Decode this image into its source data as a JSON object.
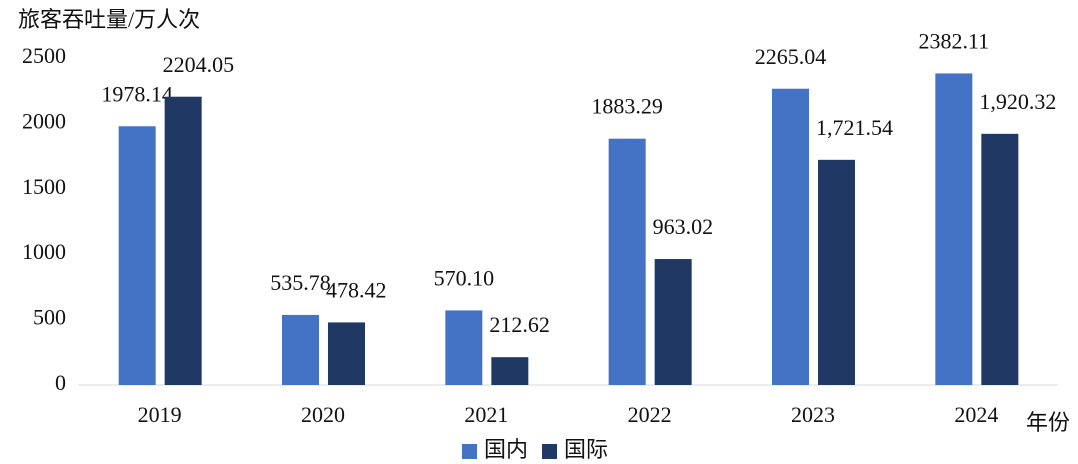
{
  "chart_data": {
    "type": "bar",
    "y_label": "旅客吞吐量/万人次",
    "x_label": "年份",
    "categories": [
      "2019",
      "2020",
      "2021",
      "2022",
      "2023",
      "2024"
    ],
    "series": [
      {
        "name": "国内",
        "color": "#4472c4",
        "values": [
          1978.14,
          535.78,
          570.1,
          1883.29,
          2265.04,
          2382.11
        ],
        "value_labels": [
          "1978.14",
          "535.78",
          "570.10",
          "1883.29",
          "2265.04",
          "2382.11"
        ]
      },
      {
        "name": "国际",
        "color": "#203864",
        "values": [
          2204.05,
          478.42,
          212.62,
          963.02,
          1721.54,
          1920.32
        ],
        "value_labels": [
          "2204.05",
          "478.42",
          "212.62",
          "963.02",
          "1,721.54",
          "1,920.32"
        ]
      }
    ],
    "ylim": [
      0,
      2500
    ],
    "yticks": [
      0,
      500,
      1000,
      1500,
      2000,
      2500
    ],
    "grid": false,
    "legend": "bottom"
  }
}
